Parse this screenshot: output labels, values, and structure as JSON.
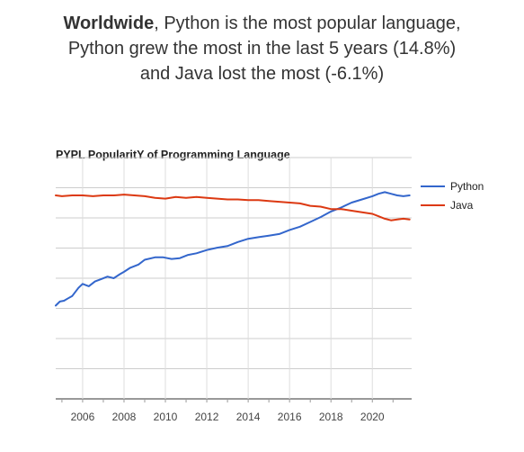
{
  "headline": {
    "line1_bold": "Worldwide",
    "line1_rest": ", Python is the most popular language,",
    "line2": "Python grew the most in the last 5 years (14.8%)",
    "line3": "and Java lost the most (-6.1%)"
  },
  "chart_data": {
    "type": "line",
    "title": "PYPL PopularitY of Programming Language",
    "xlabel": "",
    "ylabel": "",
    "xlim": [
      2004.7,
      2021.9
    ],
    "ylim": [
      0,
      30
    ],
    "grid": true,
    "legend_position": "top-right",
    "x_ticks": [
      2006,
      2008,
      2010,
      2012,
      2014,
      2016,
      2018,
      2020
    ],
    "x_tick_labels": [
      "2006",
      "2008",
      "2010",
      "2012",
      "2014",
      "2016",
      "2018",
      "2020"
    ],
    "series": [
      {
        "name": "Python",
        "color": "#3366cc",
        "x": [
          2004.7,
          2004.9,
          2005.1,
          2005.3,
          2005.5,
          2005.8,
          2006.0,
          2006.3,
          2006.6,
          2006.9,
          2007.2,
          2007.5,
          2007.8,
          2008.0,
          2008.3,
          2008.7,
          2009.0,
          2009.5,
          2009.9,
          2010.3,
          2010.7,
          2011.1,
          2011.5,
          2012.0,
          2012.5,
          2013.0,
          2013.5,
          2014.0,
          2014.5,
          2015.0,
          2015.5,
          2016.0,
          2016.5,
          2017.0,
          2017.5,
          2018.0,
          2018.5,
          2019.0,
          2019.5,
          2020.0,
          2020.3,
          2020.6,
          2020.9,
          2021.2,
          2021.5,
          2021.8
        ],
        "values": [
          11.6,
          12.1,
          12.2,
          12.5,
          12.8,
          13.8,
          14.3,
          14.0,
          14.6,
          14.9,
          15.2,
          15.0,
          15.5,
          15.8,
          16.3,
          16.7,
          17.3,
          17.6,
          17.6,
          17.4,
          17.5,
          17.9,
          18.1,
          18.5,
          18.8,
          19.0,
          19.5,
          19.9,
          20.1,
          20.3,
          20.5,
          21.0,
          21.4,
          22.0,
          22.6,
          23.3,
          23.8,
          24.4,
          24.8,
          25.2,
          25.5,
          25.7,
          25.5,
          25.3,
          25.2,
          25.3
        ]
      },
      {
        "name": "Java",
        "color": "#dc3912",
        "x": [
          2004.7,
          2005.0,
          2005.5,
          2006.0,
          2006.5,
          2007.0,
          2007.5,
          2008.0,
          2008.5,
          2009.0,
          2009.5,
          2010.0,
          2010.5,
          2011.0,
          2011.5,
          2012.0,
          2012.5,
          2013.0,
          2013.5,
          2014.0,
          2014.5,
          2015.0,
          2015.5,
          2016.0,
          2016.5,
          2017.0,
          2017.5,
          2018.0,
          2018.5,
          2019.0,
          2019.5,
          2020.0,
          2020.3,
          2020.6,
          2020.9,
          2021.2,
          2021.5,
          2021.8
        ],
        "values": [
          25.3,
          25.2,
          25.3,
          25.3,
          25.2,
          25.3,
          25.3,
          25.4,
          25.3,
          25.2,
          25.0,
          24.9,
          25.1,
          25.0,
          25.1,
          25.0,
          24.9,
          24.8,
          24.8,
          24.7,
          24.7,
          24.6,
          24.5,
          24.4,
          24.3,
          24.0,
          23.9,
          23.6,
          23.6,
          23.4,
          23.2,
          23.0,
          22.7,
          22.4,
          22.2,
          22.3,
          22.4,
          22.3
        ]
      }
    ]
  }
}
